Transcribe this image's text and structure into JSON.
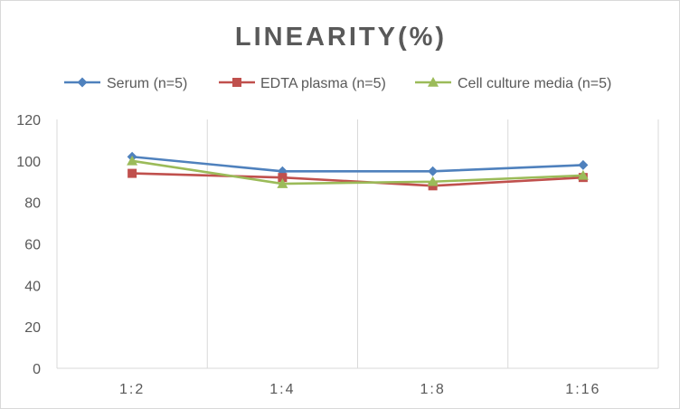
{
  "chart_data": {
    "type": "line",
    "title": "LINEARITY(%)",
    "xlabel": "",
    "ylabel": "",
    "categories": [
      "1:2",
      "1:4",
      "1:8",
      "1:16"
    ],
    "ylim": [
      0,
      120
    ],
    "yticks": [
      0,
      20,
      40,
      60,
      80,
      100,
      120
    ],
    "grid": "vertical category separators",
    "legend_position": "top",
    "series": [
      {
        "name": "Serum (n=5)",
        "values": [
          102,
          95,
          95,
          98
        ],
        "color": "#4f81bd",
        "marker": "diamond"
      },
      {
        "name": "EDTA plasma (n=5)",
        "values": [
          94,
          92,
          88,
          92
        ],
        "color": "#c0504d",
        "marker": "square"
      },
      {
        "name": "Cell culture media (n=5)",
        "values": [
          100,
          89,
          90,
          93
        ],
        "color": "#9bbb59",
        "marker": "triangle"
      }
    ]
  }
}
